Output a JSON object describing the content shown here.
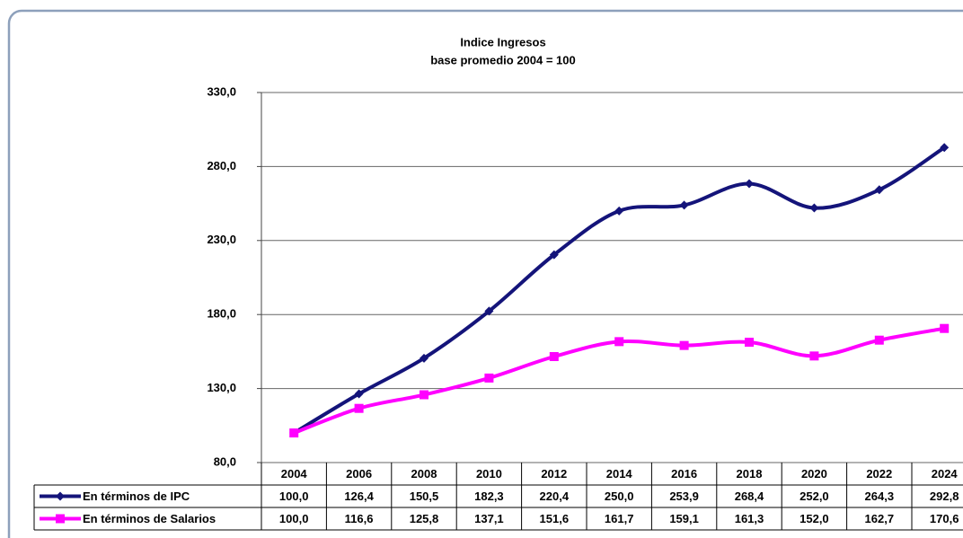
{
  "chart_data": {
    "type": "line",
    "title": "Indice  Ingresos",
    "subtitle": "base promedio  2004 = 100",
    "categories": [
      "2004",
      "2006",
      "2008",
      "2010",
      "2012",
      "2014",
      "2016",
      "2018",
      "2020",
      "2022",
      "2024"
    ],
    "series": [
      {
        "name": "En términos de IPC",
        "color": "#14147a",
        "marker": "diamond",
        "values": [
          100.0,
          126.4,
          150.5,
          182.3,
          220.4,
          250.0,
          253.9,
          268.4,
          252.0,
          264.3,
          292.8
        ],
        "value_labels": [
          "100,0",
          "126,4",
          "150,5",
          "182,3",
          "220,4",
          "250,0",
          "253,9",
          "268,4",
          "252,0",
          "264,3",
          "292,8"
        ]
      },
      {
        "name": "En términos de Salarios",
        "color": "#ff00ff",
        "marker": "square",
        "values": [
          100.0,
          116.6,
          125.8,
          137.1,
          151.6,
          161.7,
          159.1,
          161.3,
          152.0,
          162.7,
          170.6
        ],
        "value_labels": [
          "100,0",
          "116,6",
          "125,8",
          "137,1",
          "151,6",
          "161,7",
          "159,1",
          "161,3",
          "152,0",
          "162,7",
          "170,6"
        ]
      }
    ],
    "ylim": [
      80,
      330
    ],
    "yticks": [
      {
        "value": 80,
        "label": "80,0"
      },
      {
        "value": 130,
        "label": "130,0"
      },
      {
        "value": 180,
        "label": "180,0"
      },
      {
        "value": 230,
        "label": "230,0"
      },
      {
        "value": 280,
        "label": "280,0"
      },
      {
        "value": 330,
        "label": "330,0"
      }
    ],
    "grid": true
  }
}
